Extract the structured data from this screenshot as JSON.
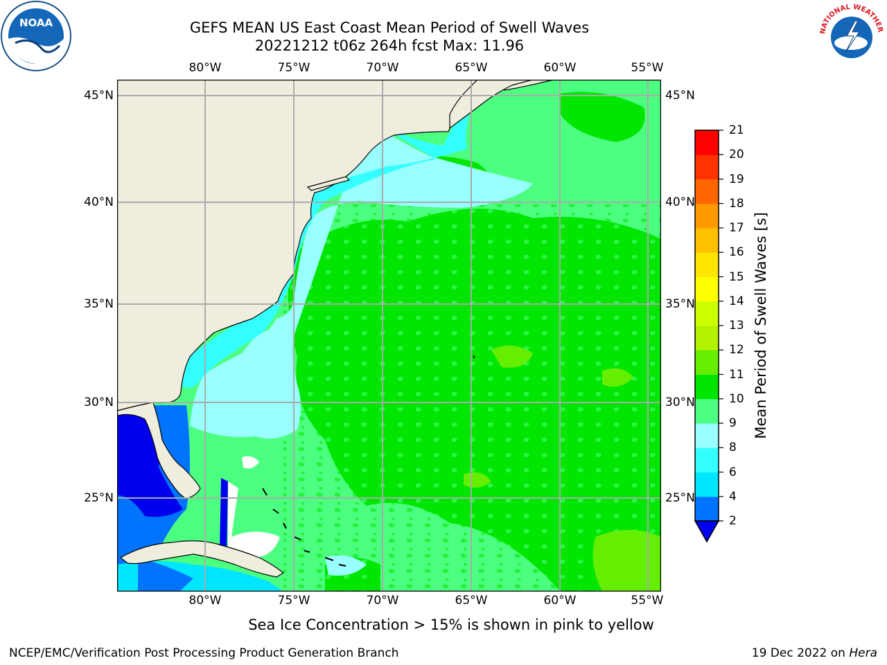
{
  "title_line1": "GEFS MEAN US East Coast Mean Period of Swell Waves",
  "title_line2": "20221212 t06z 264h fcst   Max: 11.96",
  "lon_labels": [
    "80°W",
    "75°W",
    "70°W",
    "65°W",
    "60°W",
    "55°W"
  ],
  "lat_labels": [
    "45°N",
    "40°N",
    "35°N",
    "30°N",
    "25°N"
  ],
  "colorbar": {
    "label": "Mean Period of Swell Waves [s]",
    "ticks": [
      "2",
      "4",
      "6",
      "8",
      "9",
      "10",
      "11",
      "12",
      "13",
      "14",
      "15",
      "16",
      "17",
      "18",
      "19",
      "20",
      "21"
    ],
    "colors": [
      "#0000ee",
      "#0073ff",
      "#00e6ff",
      "#33ffff",
      "#99ffff",
      "#4dff80",
      "#00e600",
      "#66ee00",
      "#b3f200",
      "#ccff00",
      "#ffff00",
      "#ffe600",
      "#ffc000",
      "#ff9900",
      "#ff6600",
      "#ff3300",
      "#ff0000"
    ],
    "under_color": "#0000ee"
  },
  "note": "Sea Ice Concentration > 15% is shown in pink to yellow",
  "footer_left": "NCEP/EMC/Verification Post Processing Product Generation Branch",
  "footer_right_date": "19 Dec 2022 on",
  "footer_right_machine": "Hera",
  "logos": {
    "left_text": "NOAA",
    "right_text": "NATIONAL WEATHER SERVICE"
  },
  "map_colors": {
    "land": "#efedde",
    "grid": "#aaaaaa"
  }
}
